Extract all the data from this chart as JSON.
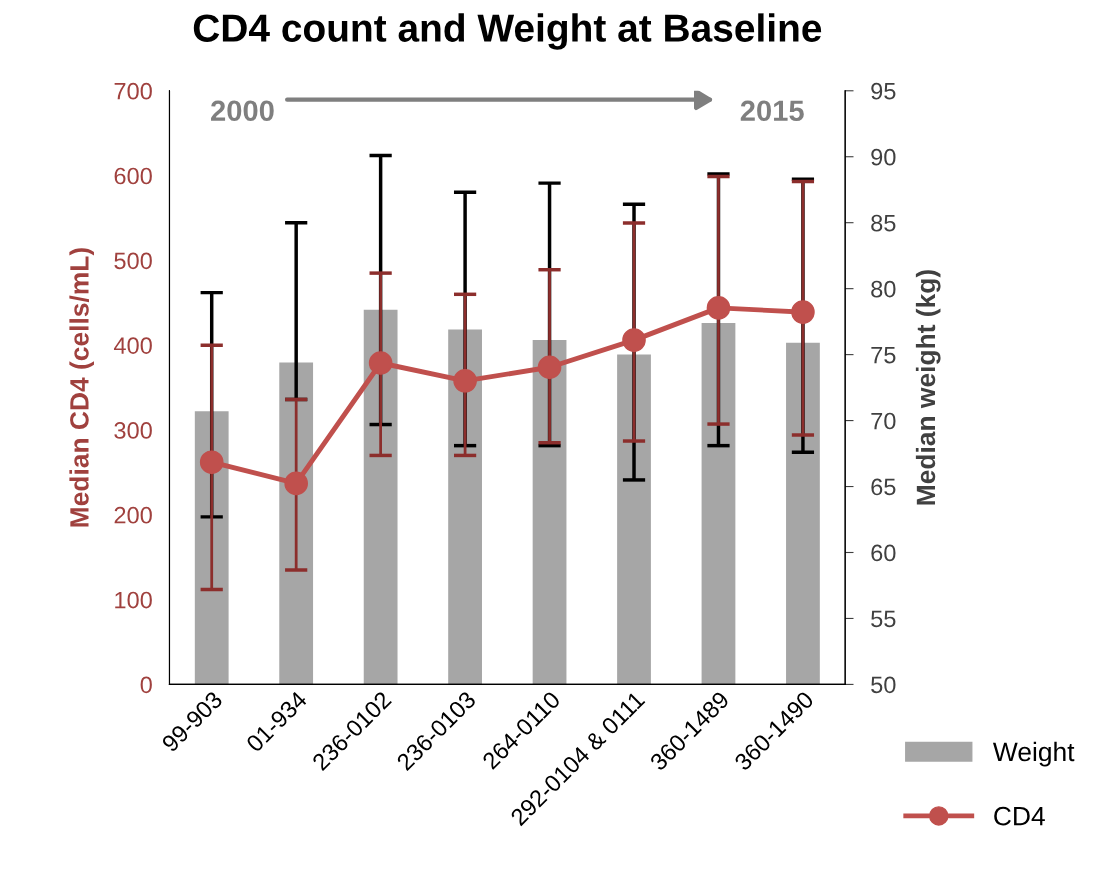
{
  "chart_data": {
    "type": "bar",
    "title": "CD4 count and Weight at Baseline",
    "categories": [
      "99-903",
      "01-934",
      "236-0102",
      "236-0103",
      "264-0110",
      "292-0104 & 0111",
      "360-1489",
      "360-1490"
    ],
    "series": [
      {
        "name": "Weight",
        "axis": "y2",
        "color": "#a6a6a6",
        "values": [
          70.7,
          74.4,
          78.4,
          76.9,
          76.1,
          75.0,
          77.4,
          75.9
        ],
        "errors": [
          [
            62.7,
            79.7
          ],
          [
            71.6,
            85.0
          ],
          [
            69.7,
            90.1
          ],
          [
            68.1,
            87.3
          ],
          [
            68.1,
            88.0
          ],
          [
            65.5,
            86.4
          ],
          [
            68.1,
            88.7
          ],
          [
            67.6,
            88.3
          ]
        ]
      },
      {
        "name": "CD4",
        "type": "line",
        "axis": "y",
        "color": "#c0504d",
        "marker": "circle",
        "values": [
          262,
          237,
          379,
          358,
          374,
          406,
          444,
          439
        ],
        "errors": [
          [
            112,
            400
          ],
          [
            135,
            336
          ],
          [
            270,
            485
          ],
          [
            270,
            460
          ],
          [
            285,
            489
          ],
          [
            287,
            544
          ],
          [
            307,
            599
          ],
          [
            294,
            593
          ]
        ]
      }
    ],
    "ylabel": "Median CD4 (cells/mL)",
    "y2label": "Median weight (kg)",
    "ylim": [
      0,
      700
    ],
    "yticks": [
      0,
      100,
      200,
      300,
      400,
      500,
      600,
      700
    ],
    "y2lim": [
      50,
      95
    ],
    "y2ticks": [
      50,
      55,
      60,
      65,
      70,
      75,
      80,
      85,
      90,
      95
    ],
    "annotations": [
      "2000",
      "2015"
    ],
    "grid": false,
    "legend": "bottom right"
  }
}
